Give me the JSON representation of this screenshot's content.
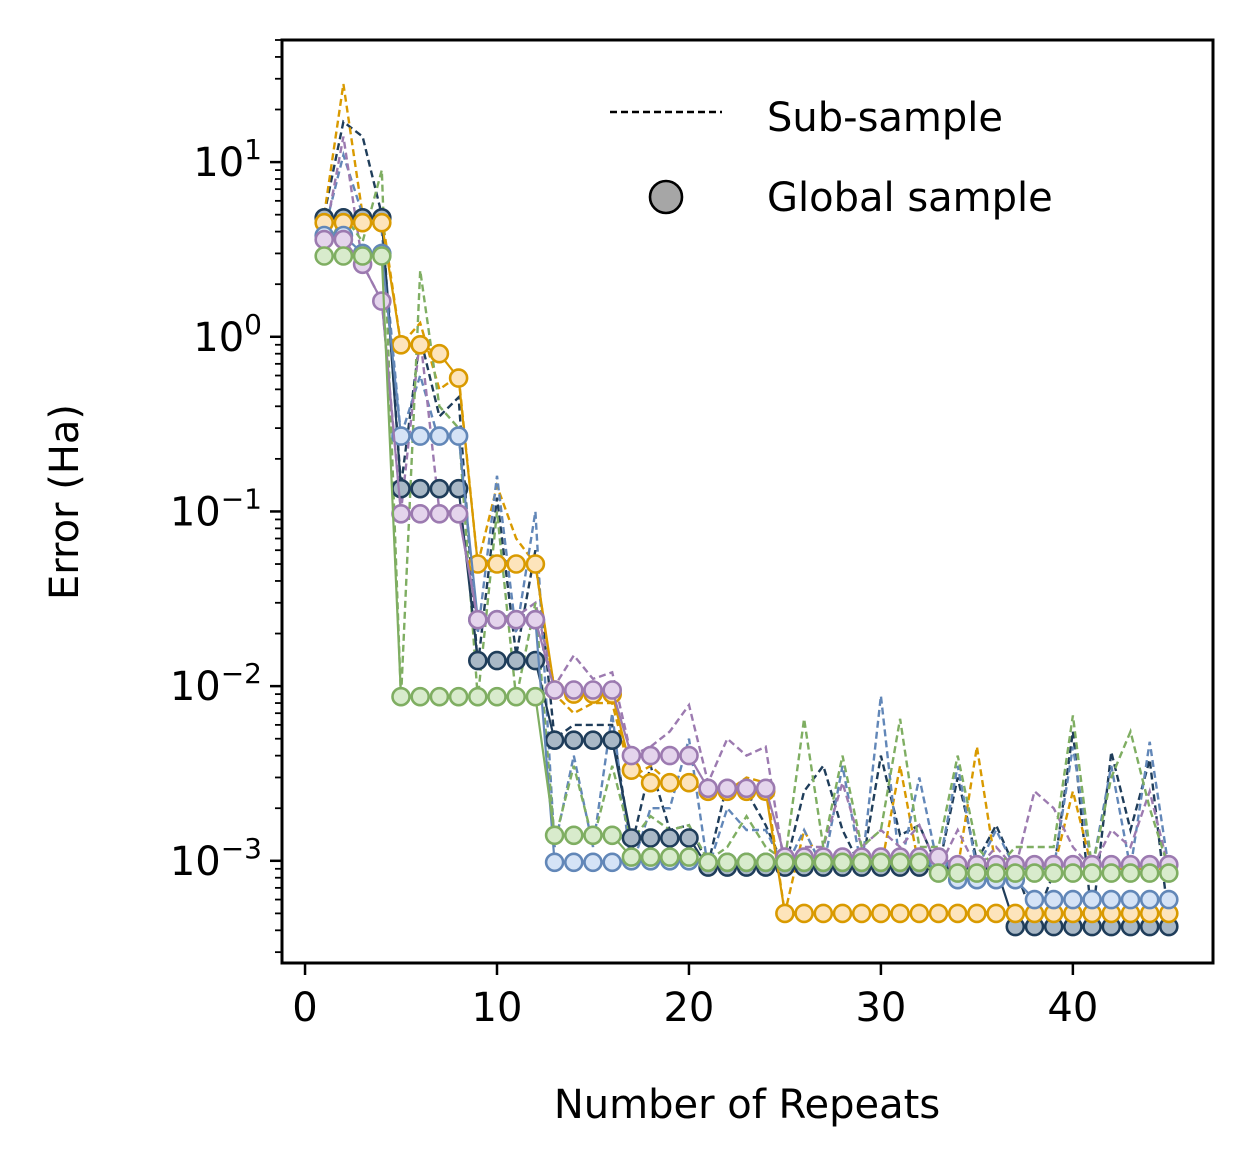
{
  "chart_data": {
    "type": "line",
    "title": "",
    "xlabel": "Number of Repeats",
    "ylabel": "Error (Ha)",
    "yscale": "log",
    "xlim": [
      -1.2,
      47.3
    ],
    "ylim": [
      0.00026,
      50
    ],
    "xticks": [
      0,
      10,
      20,
      30,
      40
    ],
    "yticks": [
      {
        "base": "10",
        "exp": "1",
        "value": 10
      },
      {
        "base": "10",
        "exp": "0",
        "value": 1
      },
      {
        "base": "10",
        "exp": "−1",
        "value": 0.1
      },
      {
        "base": "10",
        "exp": "−2",
        "value": 0.01
      },
      {
        "base": "10",
        "exp": "−3",
        "value": 0.001
      }
    ],
    "legend": {
      "placement": "top-right",
      "entries": [
        {
          "label": "Sub-sample",
          "marker": "dashed-line"
        },
        {
          "label": "Global sample",
          "marker": "circle"
        }
      ]
    },
    "series": [
      {
        "name": "navy",
        "color": "#1f3d5a",
        "fill": "#a9b8c6",
        "sub": [
          5,
          17,
          14,
          5,
          0.14,
          1.0,
          0.35,
          0.45,
          0.013,
          0.12,
          0.015,
          0.06,
          0.005,
          0.006,
          0.006,
          0.006,
          0.0012,
          0.0035,
          0.0015,
          0.0016,
          0.00095,
          0.0028,
          0.0025,
          0.0016,
          0.0009,
          0.0025,
          0.0035,
          0.0015,
          0.0009,
          0.004,
          0.0014,
          0.0016,
          0.0009,
          0.003,
          0.001,
          0.0016,
          0.0009,
          0.00045,
          0.00085,
          0.0055,
          0.00045,
          0.0042,
          0.0015,
          0.0038,
          0.00045
        ],
        "global": [
          4.8,
          4.8,
          4.8,
          4.8,
          0.135,
          0.135,
          0.135,
          0.135,
          0.014,
          0.014,
          0.014,
          0.014,
          0.0049,
          0.0049,
          0.0049,
          0.0049,
          0.00135,
          0.00135,
          0.00135,
          0.00135,
          0.00092,
          0.00092,
          0.00092,
          0.00092,
          0.00092,
          0.00092,
          0.00092,
          0.00092,
          0.00092,
          0.00092,
          0.00092,
          0.00092,
          0.00092,
          0.00092,
          0.00092,
          0.00092,
          0.00042,
          0.00042,
          0.00042,
          0.00042,
          0.00042,
          0.00042,
          0.00042,
          0.00042,
          0.00042
        ]
      },
      {
        "name": "orange",
        "color": "#d99a00",
        "fill": "#fde4bb",
        "sub": [
          5,
          28,
          5,
          5,
          0.9,
          1.2,
          0.5,
          0.6,
          0.05,
          0.14,
          0.07,
          0.05,
          0.009,
          0.007,
          0.008,
          0.008,
          0.003,
          0.0035,
          0.0028,
          0.0028,
          0.0025,
          0.0025,
          0.003,
          0.0028,
          0.0005,
          0.0015,
          0.0009,
          0.0009,
          0.0009,
          0.0009,
          0.0035,
          0.0009,
          0.0009,
          0.0009,
          0.0045,
          0.0009,
          0.0009,
          0.0009,
          0.0009,
          0.0025,
          0.0009,
          0.0009,
          0.0009,
          0.0009,
          0.0009
        ],
        "global": [
          4.5,
          4.5,
          4.5,
          4.5,
          0.9,
          0.9,
          0.8,
          0.58,
          0.05,
          0.05,
          0.05,
          0.05,
          0.0095,
          0.009,
          0.009,
          0.009,
          0.0033,
          0.0028,
          0.0028,
          0.0028,
          0.0025,
          0.0025,
          0.0025,
          0.0025,
          0.0005,
          0.0005,
          0.0005,
          0.0005,
          0.0005,
          0.0005,
          0.0005,
          0.0005,
          0.0005,
          0.0005,
          0.0005,
          0.0005,
          0.0005,
          0.0005,
          0.0005,
          0.0005,
          0.0005,
          0.0005,
          0.0005,
          0.0005,
          0.0005
        ]
      },
      {
        "name": "blue",
        "color": "#6287b8",
        "fill": "#d5e3f6",
        "sub": [
          4,
          11,
          5,
          4,
          0.27,
          0.6,
          0.25,
          0.3,
          0.02,
          0.16,
          0.02,
          0.1,
          0.0012,
          0.004,
          0.0012,
          0.007,
          0.0009,
          0.002,
          0.002,
          0.005,
          0.0009,
          0.002,
          0.0015,
          0.0015,
          0.0009,
          0.0015,
          0.0009,
          0.0035,
          0.0009,
          0.0088,
          0.0009,
          0.003,
          0.0009,
          0.0035,
          0.0009,
          0.0015,
          0.0009,
          0.0009,
          0.0009,
          0.0045,
          0.0009,
          0.0035,
          0.0009,
          0.0048,
          0.0009
        ],
        "global": [
          3.8,
          3.8,
          3.0,
          3.0,
          0.27,
          0.27,
          0.27,
          0.27,
          0.024,
          0.024,
          0.024,
          0.024,
          0.00098,
          0.00098,
          0.00098,
          0.00098,
          0.001,
          0.001,
          0.001,
          0.001,
          0.00098,
          0.00098,
          0.00098,
          0.00098,
          0.00098,
          0.00098,
          0.00098,
          0.00098,
          0.00098,
          0.00098,
          0.00098,
          0.00098,
          0.00098,
          0.00078,
          0.00078,
          0.00078,
          0.00078,
          0.0006,
          0.0006,
          0.0006,
          0.0006,
          0.0006,
          0.0006,
          0.0006,
          0.0006
        ]
      },
      {
        "name": "purple",
        "color": "#9c7ab0",
        "fill": "#e4d4ec",
        "sub": [
          3.6,
          14,
          2.6,
          1.6,
          0.1,
          1.0,
          0.1,
          0.1,
          0.024,
          0.025,
          0.025,
          0.03,
          0.01,
          0.015,
          0.011,
          0.012,
          0.004,
          0.0045,
          0.0055,
          0.0078,
          0.0028,
          0.005,
          0.004,
          0.0045,
          0.0009,
          0.0012,
          0.0012,
          0.0028,
          0.0012,
          0.0015,
          0.0012,
          0.0016,
          0.0009,
          0.0015,
          0.0009,
          0.0012,
          0.0009,
          0.0025,
          0.002,
          0.0012,
          0.0009,
          0.0015,
          0.0012,
          0.0025,
          0.0009
        ],
        "global": [
          3.6,
          3.6,
          2.6,
          1.6,
          0.097,
          0.097,
          0.097,
          0.097,
          0.024,
          0.024,
          0.024,
          0.024,
          0.0095,
          0.0095,
          0.0095,
          0.0095,
          0.004,
          0.004,
          0.004,
          0.004,
          0.0026,
          0.0026,
          0.0026,
          0.0026,
          0.00105,
          0.00105,
          0.00105,
          0.00105,
          0.00105,
          0.00105,
          0.00105,
          0.00105,
          0.00105,
          0.00095,
          0.00095,
          0.00095,
          0.00095,
          0.00095,
          0.00095,
          0.00095,
          0.00095,
          0.00095,
          0.00095,
          0.00095,
          0.00095
        ]
      },
      {
        "name": "green",
        "color": "#7fae62",
        "fill": "#d8ebcc",
        "sub": [
          3,
          5,
          3.5,
          9,
          0.0085,
          2.4,
          0.4,
          0.3,
          0.0085,
          0.1,
          0.0085,
          0.03,
          0.0013,
          0.0035,
          0.0013,
          0.0035,
          0.0013,
          0.0018,
          0.0015,
          0.0016,
          0.001,
          0.0012,
          0.0018,
          0.0012,
          0.001,
          0.0065,
          0.0012,
          0.004,
          0.0012,
          0.0015,
          0.0065,
          0.0012,
          0.0012,
          0.004,
          0.0012,
          0.0009,
          0.0012,
          0.0012,
          0.0012,
          0.0068,
          0.0009,
          0.003,
          0.0055,
          0.002,
          0.0009
        ],
        "global": [
          2.9,
          2.9,
          2.9,
          2.9,
          0.0087,
          0.0087,
          0.0087,
          0.0087,
          0.0087,
          0.0087,
          0.0087,
          0.0087,
          0.0014,
          0.0014,
          0.0014,
          0.0014,
          0.00105,
          0.00105,
          0.00105,
          0.00105,
          0.00098,
          0.00098,
          0.00098,
          0.00098,
          0.00098,
          0.00098,
          0.00098,
          0.00098,
          0.00098,
          0.00098,
          0.00098,
          0.00098,
          0.00085,
          0.00085,
          0.00085,
          0.00085,
          0.00085,
          0.00085,
          0.00085,
          0.00085,
          0.00085,
          0.00085,
          0.00085,
          0.00085,
          0.00085
        ]
      }
    ]
  }
}
